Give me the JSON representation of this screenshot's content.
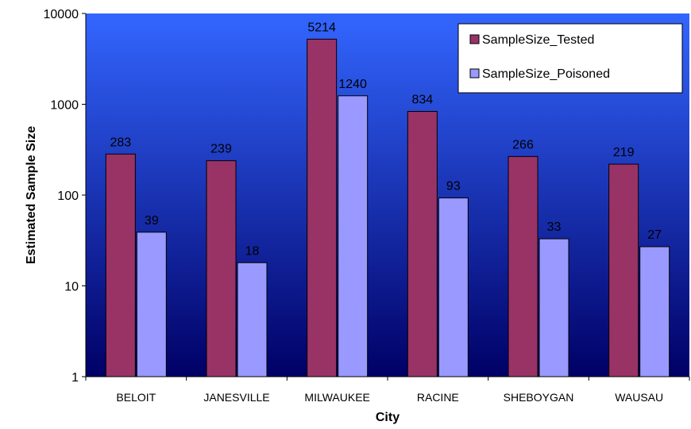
{
  "chart_data": {
    "type": "bar",
    "title": "",
    "xlabel": "City",
    "ylabel": "Estimated Sample Size",
    "yscale": "log",
    "ylim": [
      1,
      10000
    ],
    "yticks": [
      "1",
      "10",
      "100",
      "1000",
      "10000"
    ],
    "grid": false,
    "legend_position": "top-right",
    "categories": [
      "BELOIT",
      "JANESVILLE",
      "MILWAUKEE",
      "RACINE",
      "SHEBOYGAN",
      "WAUSAU"
    ],
    "series": [
      {
        "name": "SampleSize_Tested",
        "values": [
          283,
          239,
          5214,
          834,
          266,
          219
        ],
        "labels": [
          "283",
          "239",
          "5214",
          "834",
          "266",
          "219"
        ],
        "color": "#993366"
      },
      {
        "name": "SampleSize_Poisoned",
        "values": [
          39,
          18,
          1240,
          93,
          33,
          27
        ],
        "labels": [
          "39",
          "18",
          "1240",
          "93",
          "33",
          "27"
        ],
        "color": "#9999ff"
      }
    ],
    "plot_background": [
      "#3366ff",
      "#000066"
    ]
  }
}
